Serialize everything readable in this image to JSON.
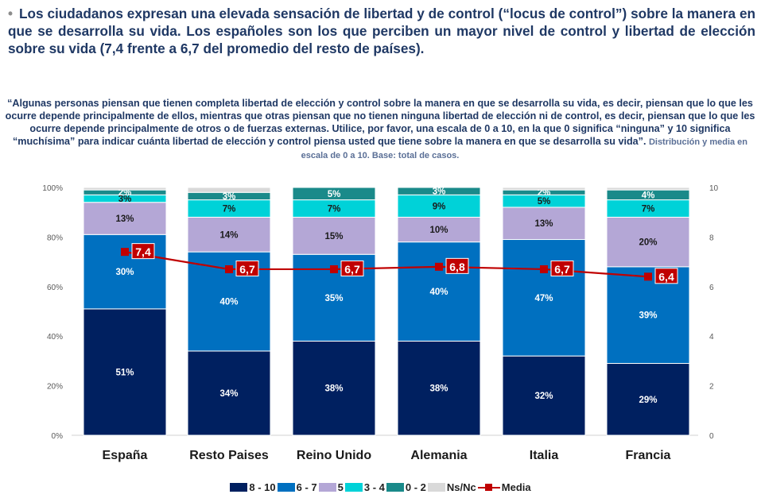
{
  "headline": {
    "bullet": "•",
    "text": "Los ciudadanos expresan una elevada sensación de libertad y de control (“locus de control”) sobre la manera en que se desarrolla su vida. Los españoles son los que perciben un mayor nivel de control y libertad de elección sobre su vida (7,4 frente a 6,7 del promedio del resto de países)."
  },
  "question": {
    "text": "“Algunas personas piensan que tienen completa libertad de elección y control sobre la manera en que se desarrolla su vida, es decir, piensan que lo que les ocurre depende principalmente de ellos, mientras que otras piensan que no tienen ninguna libertad de elección ni de control, es decir, piensan que lo que les ocurre depende principalmente de otros o de fuerzas externas. Utilice, por favor, una escala de 0 a 10, en la que 0 significa “ninguna” y 10 significa “muchísima” para indicar cuánta libertad de elección y control piensa usted que tiene sobre la manera en que se desarrolla su vida”.",
    "note": "Distribución y media en escala de 0 a 10. Base: total de casos."
  },
  "colors": {
    "8 - 10": "#002060",
    "6 - 7": "#0070c0",
    "5": "#b4a7d6",
    "3 - 4": "#00d2d8",
    "0 - 2": "#1a8a8a",
    "Ns/Nc": "#d9d9d9",
    "Media": "#c00000",
    "title": "#1f3864"
  },
  "chart_data": {
    "type": "bar",
    "stacked": true,
    "categories": [
      "España",
      "Resto Paises",
      "Reino Unido",
      "Alemania",
      "Italia",
      "Francia"
    ],
    "series": [
      {
        "name": "8 - 10",
        "values": [
          51,
          34,
          38,
          38,
          32,
          29
        ],
        "labels": [
          "51%",
          "34%",
          "38%",
          "38%",
          "32%",
          "29%"
        ]
      },
      {
        "name": "6 - 7",
        "values": [
          30,
          40,
          35,
          40,
          47,
          39
        ],
        "labels": [
          "30%",
          "40%",
          "35%",
          "40%",
          "47%",
          "39%"
        ]
      },
      {
        "name": "5",
        "values": [
          13,
          14,
          15,
          10,
          13,
          20
        ],
        "labels": [
          "13%",
          "14%",
          "15%",
          "10%",
          "13%",
          "20%"
        ]
      },
      {
        "name": "3 - 4",
        "values": [
          3,
          7,
          7,
          9,
          5,
          7
        ],
        "labels": [
          "3%",
          "7%",
          "7%",
          "9%",
          "5%",
          "7%"
        ]
      },
      {
        "name": "0 - 2",
        "values": [
          2,
          3,
          5,
          3,
          2,
          4
        ],
        "labels": [
          "2%",
          "3%",
          "5%",
          "3%",
          "2%",
          "4%"
        ]
      },
      {
        "name": "Ns/Nc",
        "values": [
          1,
          2,
          0,
          0,
          1,
          1
        ],
        "labels": [
          "",
          "",
          "",
          "",
          "",
          ""
        ]
      }
    ],
    "line": {
      "name": "Media",
      "values": [
        7.4,
        6.7,
        6.7,
        6.8,
        6.7,
        6.4
      ],
      "labels": [
        "7,4",
        "6,7",
        "6,7",
        "6,8",
        "6,7",
        "6,4"
      ]
    },
    "y_left": {
      "ylim": [
        0,
        100
      ],
      "ticks": [
        "0%",
        "20%",
        "40%",
        "60%",
        "80%",
        "100%"
      ]
    },
    "y_right": {
      "ylim": [
        0,
        10
      ],
      "ticks": [
        "0",
        "2",
        "4",
        "6",
        "8",
        "10"
      ]
    },
    "grid": false,
    "legend": "bottom"
  }
}
